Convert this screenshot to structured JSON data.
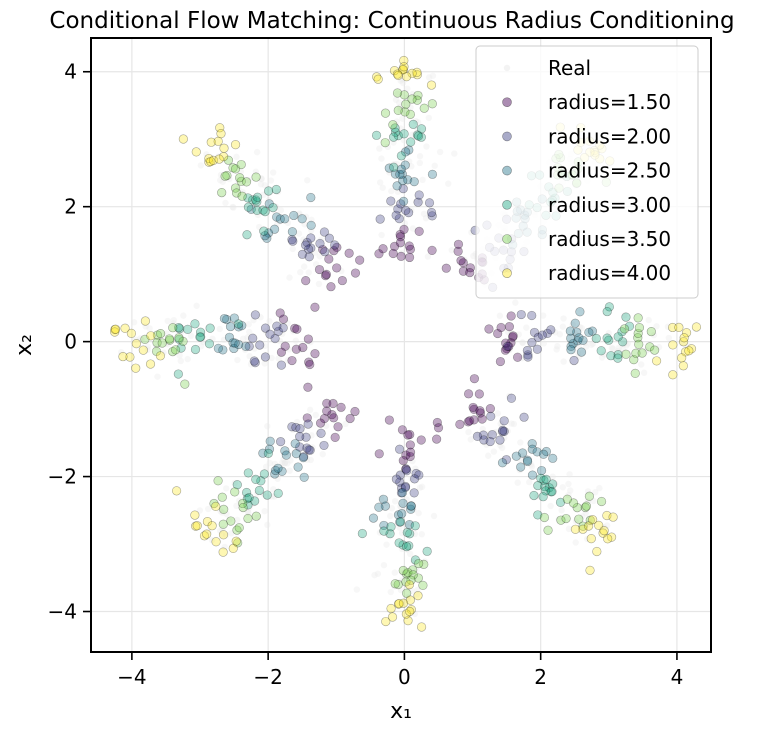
{
  "chart_data": {
    "type": "scatter",
    "title": "Conditional Flow Matching: Continuous Radius Conditioning",
    "xlabel": "x₁",
    "ylabel": "x₂",
    "xlim": [
      -4.6,
      4.5
    ],
    "ylim": [
      -4.6,
      4.5
    ],
    "xticks": [
      -4,
      -2,
      0,
      2,
      4
    ],
    "yticks": [
      -4,
      -2,
      0,
      2,
      4
    ],
    "xtick_labels": [
      "−4",
      "−2",
      "0",
      "2",
      "4"
    ],
    "ytick_labels": [
      "−4",
      "−2",
      "0",
      "2",
      "4"
    ],
    "grid": true,
    "legend_position": "top-right",
    "structure": "8 Gaussian clusters at angles 0°, 45°, …, 315°; each conditional series places its clusters at the given radius",
    "cluster_angles_deg": [
      0,
      45,
      90,
      135,
      180,
      225,
      270,
      315
    ],
    "cluster_spread": 0.18,
    "series": [
      {
        "name": "Real",
        "kind": "real",
        "radius_range": [
          1.5,
          4.0
        ],
        "color": "#e8e8e8",
        "alpha": 0.35,
        "points_per_cluster": 60
      },
      {
        "name": "radius=1.50",
        "radius": 1.5,
        "color": "#440154",
        "alpha": 0.35,
        "points_per_cluster": 14
      },
      {
        "name": "radius=2.00",
        "radius": 2.0,
        "color": "#414487",
        "alpha": 0.35,
        "points_per_cluster": 14
      },
      {
        "name": "radius=2.50",
        "radius": 2.5,
        "color": "#2a788e",
        "alpha": 0.35,
        "points_per_cluster": 14
      },
      {
        "name": "radius=3.00",
        "radius": 3.0,
        "color": "#22a884",
        "alpha": 0.35,
        "points_per_cluster": 14
      },
      {
        "name": "radius=3.50",
        "radius": 3.5,
        "color": "#7ad151",
        "alpha": 0.35,
        "points_per_cluster": 14
      },
      {
        "name": "radius=4.00",
        "radius": 4.0,
        "color": "#fde725",
        "alpha": 0.35,
        "points_per_cluster": 14
      }
    ]
  }
}
